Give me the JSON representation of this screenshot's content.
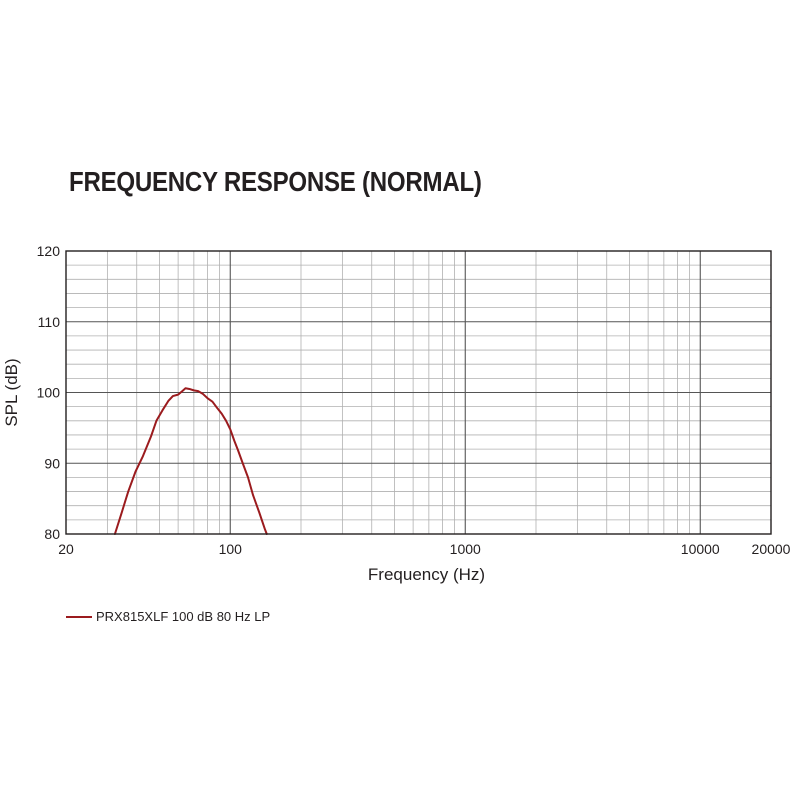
{
  "chart_data": {
    "type": "line",
    "title": "FREQUENCY RESPONSE (NORMAL)",
    "xlabel": "Frequency (Hz)",
    "ylabel": "SPL (dB)",
    "xscale": "log",
    "xlim": [
      20,
      20000
    ],
    "ylim": [
      80,
      120
    ],
    "xtick_labels": [
      "20",
      "100",
      "1000",
      "10000",
      "20000"
    ],
    "xticks": [
      20,
      100,
      1000,
      10000,
      20000
    ],
    "yticks": [
      80,
      90,
      100,
      110,
      120
    ],
    "ytick_labels": [
      "80",
      "90",
      "100",
      "110",
      "120"
    ],
    "grid": true,
    "legend_position": "bottom-left",
    "series": [
      {
        "name": "PRX815XLF 100 dB 80 Hz LP",
        "color": "#9b1b1e",
        "points": [
          [
            32.3,
            80.0
          ],
          [
            34.5,
            83.0
          ],
          [
            36.8,
            86.0
          ],
          [
            39.5,
            88.8
          ],
          [
            42.5,
            91.0
          ],
          [
            46.0,
            93.8
          ],
          [
            48.5,
            96.0
          ],
          [
            51.5,
            97.5
          ],
          [
            54.5,
            98.8
          ],
          [
            57.0,
            99.5
          ],
          [
            60.0,
            99.7
          ],
          [
            62.5,
            100.2
          ],
          [
            64.5,
            100.6
          ],
          [
            67.0,
            100.5
          ],
          [
            70.0,
            100.3
          ],
          [
            73.0,
            100.2
          ],
          [
            76.5,
            99.8
          ],
          [
            80.0,
            99.2
          ],
          [
            84.0,
            98.7
          ],
          [
            88.0,
            97.8
          ],
          [
            92.0,
            97.0
          ],
          [
            96.0,
            96.0
          ],
          [
            100.0,
            94.8
          ],
          [
            104.0,
            93.2
          ],
          [
            108.0,
            91.8
          ],
          [
            113.0,
            90.0
          ],
          [
            119.0,
            88.0
          ],
          [
            125.0,
            85.5
          ],
          [
            133.0,
            83.0
          ],
          [
            140.0,
            80.8
          ],
          [
            143.0,
            80.0
          ]
        ]
      }
    ]
  }
}
